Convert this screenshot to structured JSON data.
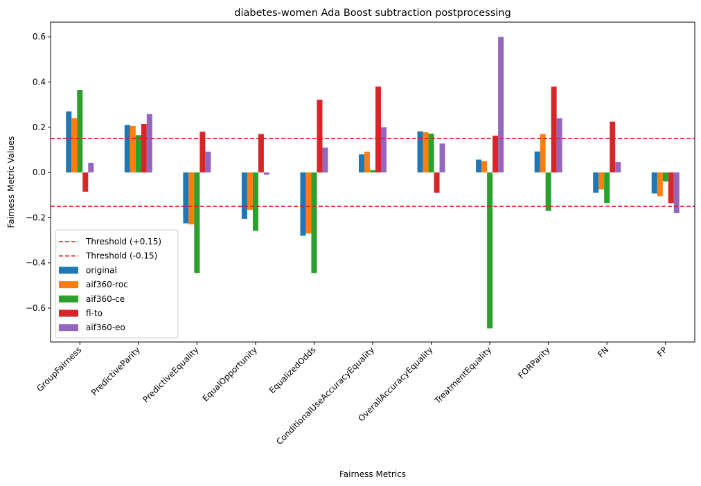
{
  "chart_data": {
    "type": "bar",
    "title": "diabetes-women Ada Boost subtraction postprocessing",
    "xlabel": "Fairness Metrics",
    "ylabel": "Fairness Metric Values",
    "ylim": [
      -0.75,
      0.665
    ],
    "yticks": [
      -0.6,
      -0.4,
      -0.2,
      0.0,
      0.2,
      0.4,
      0.6
    ],
    "ytick_labels": [
      "−0.6",
      "−0.4",
      "−0.2",
      "0.0",
      "0.2",
      "0.4",
      "0.6"
    ],
    "grid": false,
    "legend_position": "lower-left",
    "categories": [
      "GroupFairness",
      "PredictiveParity",
      "PredictiveEquality",
      "EqualOpportunity",
      "EqualizedOdds",
      "ConditionalUseAccuracyEquality",
      "OverallAccuracyEquality",
      "TreatmentEquality",
      "FORParity",
      "FN",
      "FP"
    ],
    "thresholds": [
      {
        "name": "Threshold (+0.15)",
        "value": 0.15,
        "color": "#e31a1c"
      },
      {
        "name": "Threshold (-0.15)",
        "value": -0.15,
        "color": "#e31a1c"
      }
    ],
    "series": [
      {
        "name": "original",
        "color": "#1f77b4",
        "values": [
          0.27,
          0.21,
          -0.225,
          -0.205,
          -0.28,
          0.08,
          0.182,
          0.057,
          0.093,
          -0.09,
          -0.093
        ]
      },
      {
        "name": "aif360-roc",
        "color": "#ff7f0e",
        "values": [
          0.24,
          0.206,
          -0.23,
          -0.165,
          -0.27,
          0.092,
          0.178,
          0.05,
          0.17,
          -0.075,
          -0.105
        ]
      },
      {
        "name": "aif360-ce",
        "color": "#2ca02c",
        "values": [
          0.365,
          0.165,
          -0.445,
          -0.258,
          -0.445,
          0.01,
          0.172,
          -0.69,
          -0.17,
          -0.135,
          -0.04
        ]
      },
      {
        "name": "fl-to",
        "color": "#d62728",
        "values": [
          -0.085,
          0.215,
          0.18,
          0.17,
          0.322,
          0.38,
          -0.09,
          0.163,
          0.38,
          0.225,
          -0.135
        ]
      },
      {
        "name": "aif360-eo",
        "color": "#9467bd",
        "values": [
          0.043,
          0.258,
          0.092,
          -0.01,
          0.11,
          0.2,
          0.128,
          0.6,
          0.24,
          0.046,
          -0.18
        ]
      }
    ]
  }
}
